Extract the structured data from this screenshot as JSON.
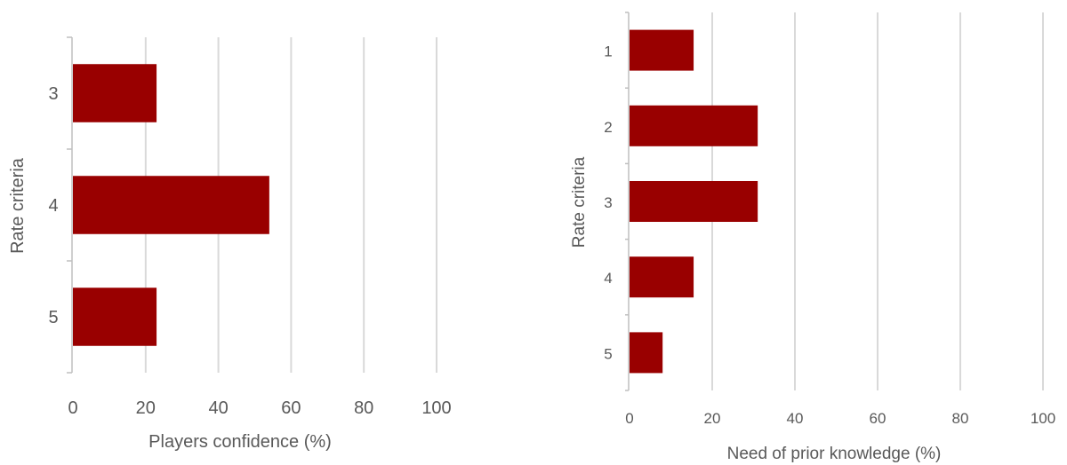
{
  "colors": {
    "bar": "#990000",
    "grid": "#d9d9d9",
    "axis": "#bfbfbf",
    "text": "#595959"
  },
  "chart_data": [
    {
      "type": "bar",
      "orientation": "horizontal",
      "categories": [
        "3",
        "4",
        "5"
      ],
      "values": [
        23,
        54,
        23
      ],
      "xlabel": "Players confidence (%)",
      "ylabel": "Rate criteria",
      "xlim": [
        0,
        100
      ],
      "xticks": [
        "0",
        "20",
        "40",
        "60",
        "80",
        "100"
      ],
      "grid": true,
      "legend": "none"
    },
    {
      "type": "bar",
      "orientation": "horizontal",
      "categories": [
        "1",
        "2",
        "3",
        "4",
        "5"
      ],
      "values": [
        15.5,
        31,
        31,
        15.5,
        8
      ],
      "xlabel": "Need of prior knowledge (%)",
      "ylabel": "Rate criteria",
      "xlim": [
        0,
        100
      ],
      "xticks": [
        "0",
        "20",
        "40",
        "60",
        "80",
        "100"
      ],
      "grid": true,
      "legend": "none"
    }
  ]
}
